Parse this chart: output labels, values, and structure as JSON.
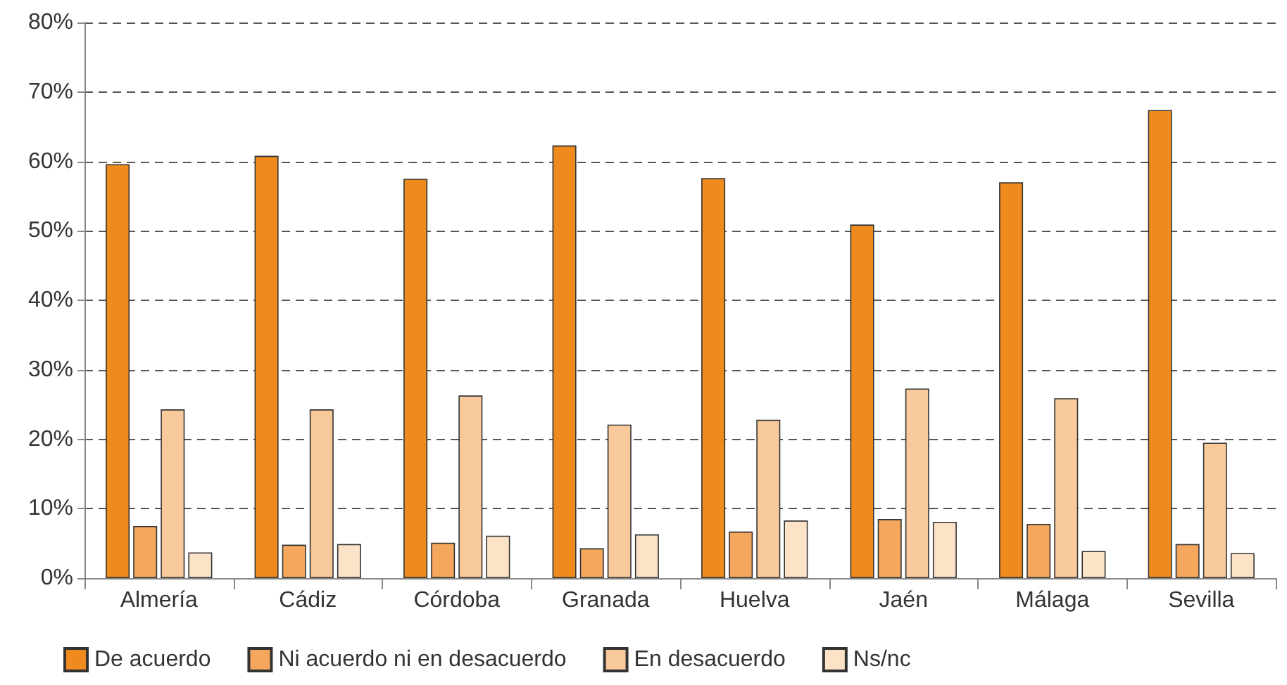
{
  "chart_data": {
    "type": "bar",
    "categories": [
      "Almería",
      "Cádiz",
      "Córdoba",
      "Granada",
      "Huelva",
      "Jaén",
      "Málaga",
      "Sevilla"
    ],
    "series": [
      {
        "name": "De acuerdo",
        "color": "#ee8a1e",
        "values": [
          59.6,
          60.8,
          57.5,
          62.3,
          57.6,
          50.9,
          57.0,
          67.4
        ]
      },
      {
        "name": "Ni acuerdo ni en desacuerdo",
        "color": "#f4a75d",
        "values": [
          7.5,
          4.8,
          5.1,
          4.3,
          6.7,
          8.5,
          7.8,
          4.9
        ]
      },
      {
        "name": "En desacuerdo",
        "color": "#f8c99b",
        "values": [
          24.3,
          24.3,
          26.3,
          22.1,
          22.8,
          27.3,
          25.9,
          19.5
        ]
      },
      {
        "name": "Ns/nc",
        "color": "#fce3c8",
        "values": [
          3.7,
          4.9,
          6.1,
          6.3,
          8.3,
          8.1,
          3.9,
          3.6
        ]
      }
    ],
    "ylim": [
      0,
      80
    ],
    "yticks": [
      {
        "value": 0,
        "label": "0%"
      },
      {
        "value": 10,
        "label": "10%"
      },
      {
        "value": 20,
        "label": "20%"
      },
      {
        "value": 30,
        "label": "30%"
      },
      {
        "value": 40,
        "label": "40%"
      },
      {
        "value": 50,
        "label": "50%"
      },
      {
        "value": 60,
        "label": "60%"
      },
      {
        "value": 70,
        "label": "70%"
      },
      {
        "value": 80,
        "label": "80%"
      }
    ],
    "grid": "y",
    "legend": "bottom"
  }
}
